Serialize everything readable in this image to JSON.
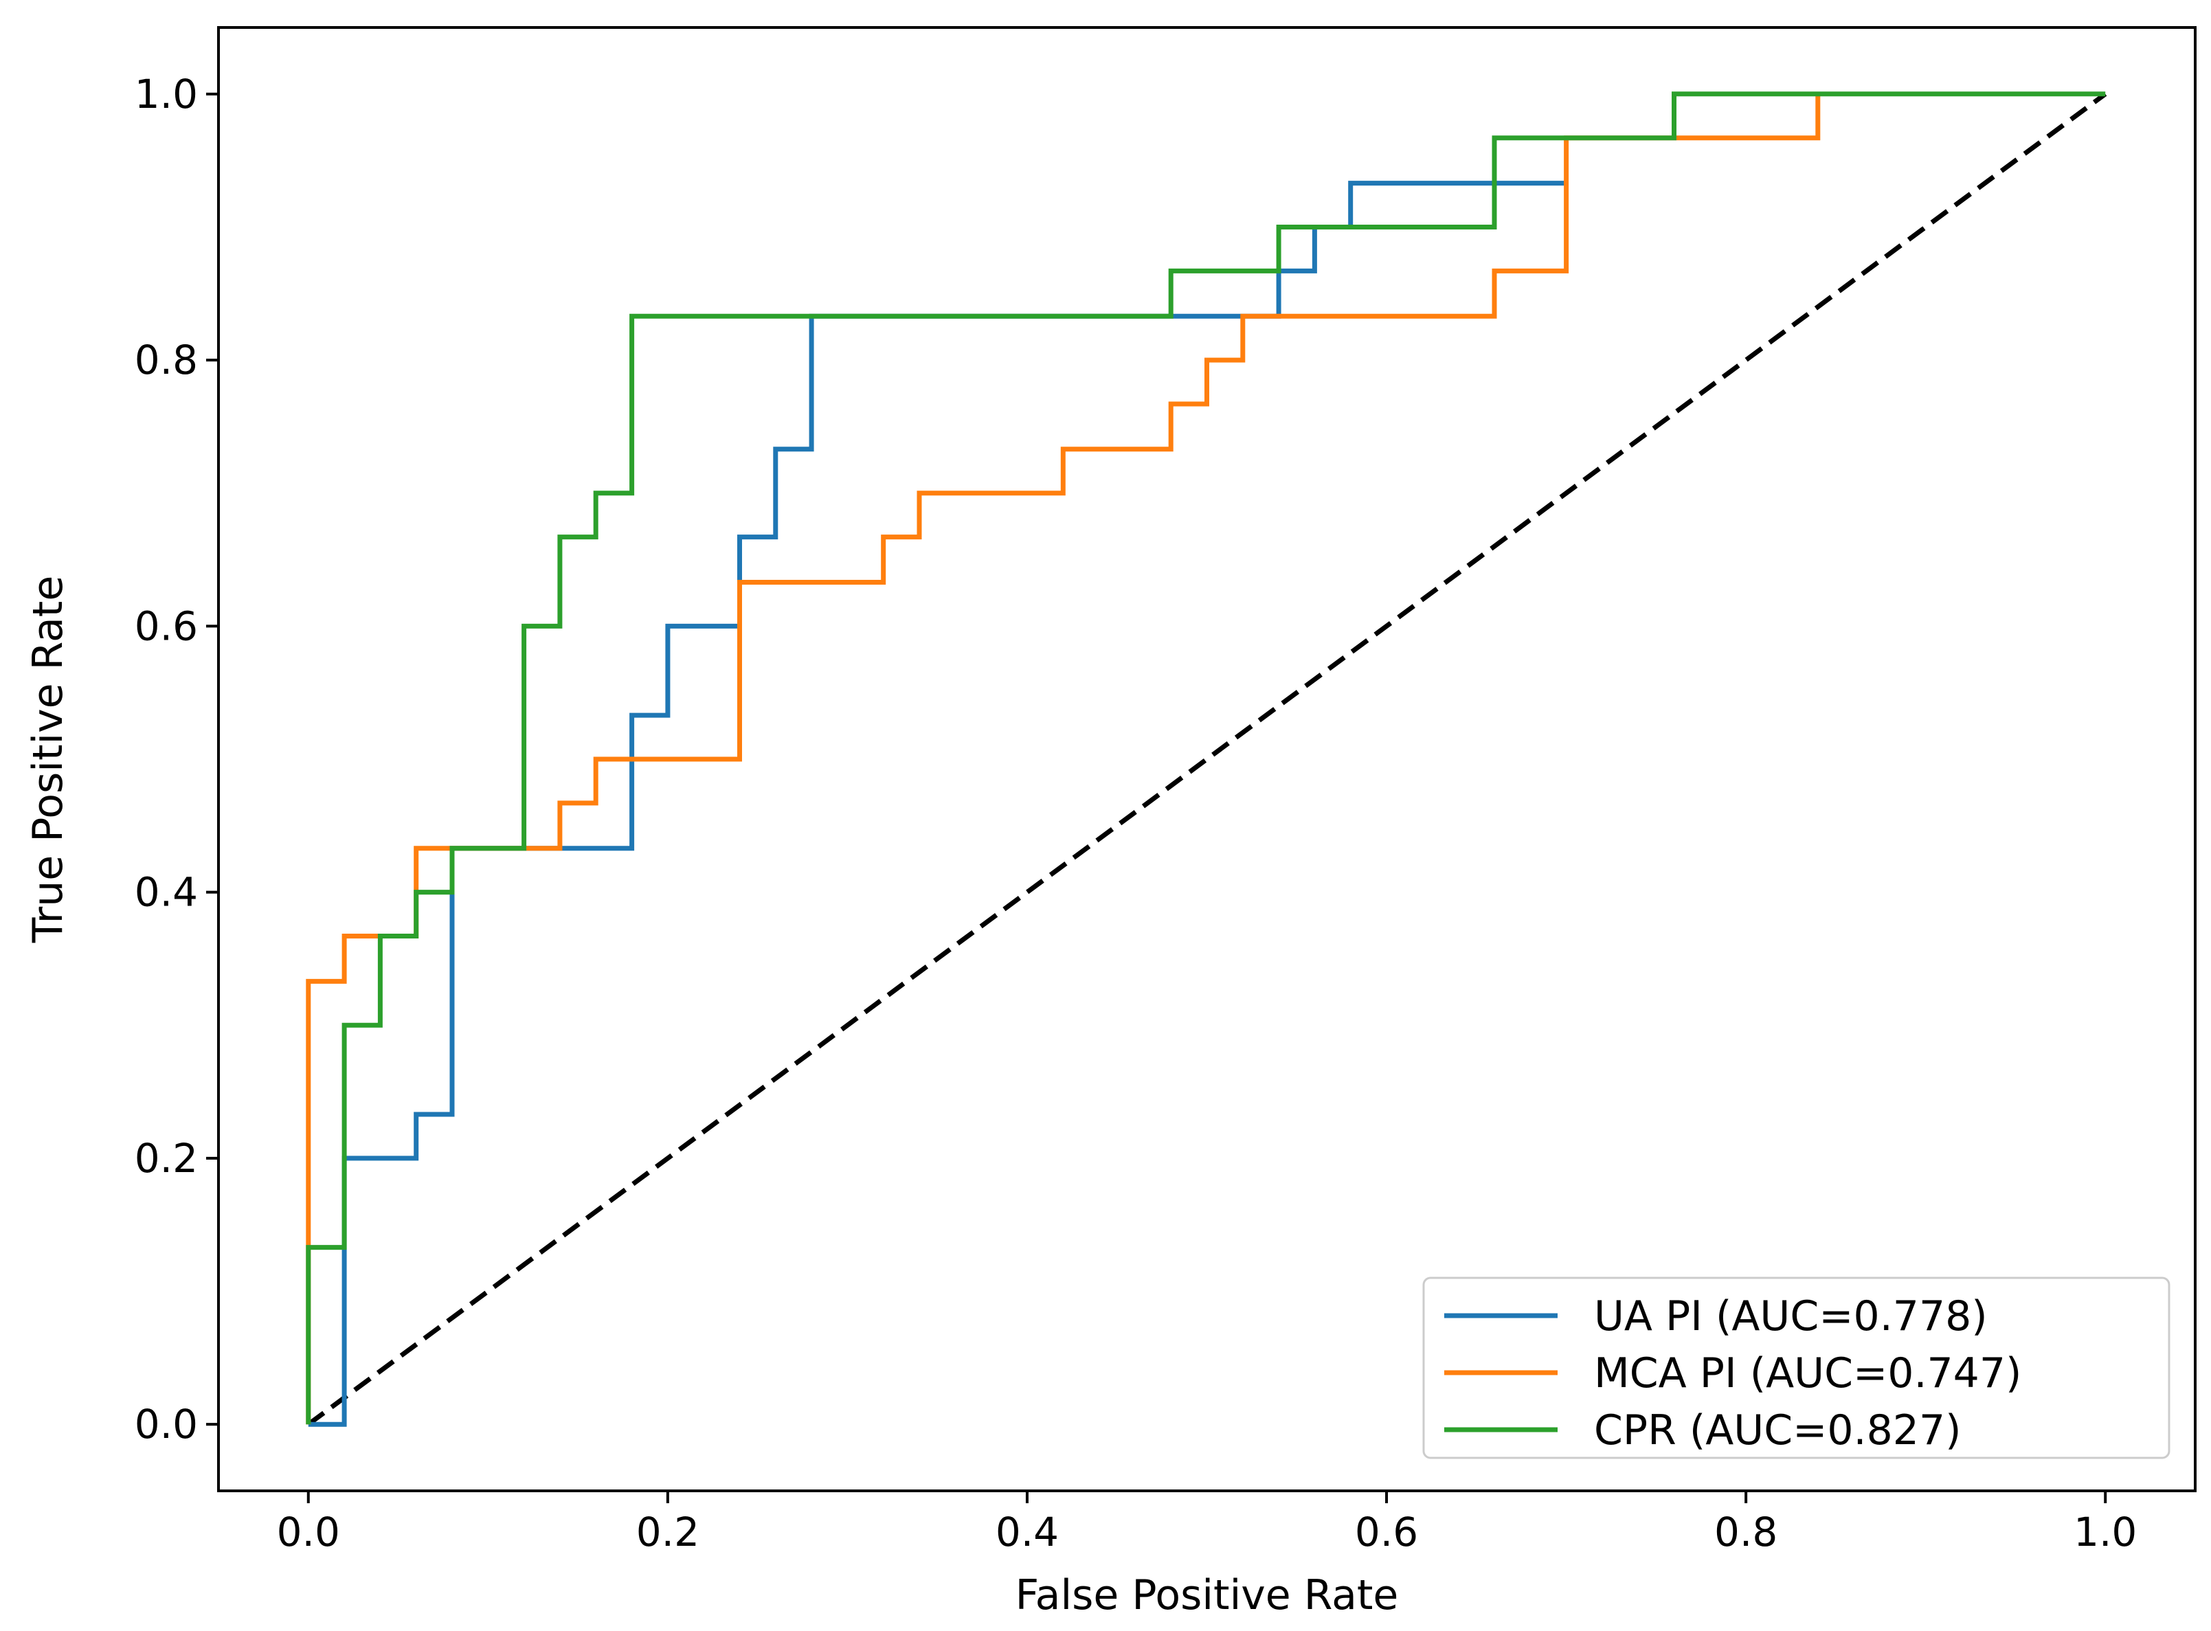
{
  "chart_data": {
    "type": "line",
    "title": "",
    "xlabel": "False Positive Rate",
    "ylabel": "True Positive Rate",
    "xlim": [
      -0.05,
      1.05
    ],
    "ylim": [
      -0.05,
      1.05
    ],
    "xticks": [
      0.0,
      0.2,
      0.4,
      0.6,
      0.8,
      1.0
    ],
    "xtick_labels": [
      "0.0",
      "0.2",
      "0.4",
      "0.6",
      "0.8",
      "1.0"
    ],
    "yticks": [
      0.0,
      0.2,
      0.4,
      0.6,
      0.8,
      1.0
    ],
    "ytick_labels": [
      "0.0",
      "0.2",
      "0.4",
      "0.6",
      "0.8",
      "1.0"
    ],
    "grid": false,
    "legend_position": "lower-right",
    "series": [
      {
        "name": "UA PI (AUC=0.778)",
        "color": "#1f77b4",
        "x": [
          0,
          0.02,
          0.02,
          0.06,
          0.06,
          0.08,
          0.08,
          0.18,
          0.18,
          0.2,
          0.2,
          0.24,
          0.24,
          0.26,
          0.26,
          0.28,
          0.28,
          0.54,
          0.54,
          0.56,
          0.56,
          0.58,
          0.58,
          0.7
        ],
        "y": [
          0,
          0,
          0.2,
          0.2,
          0.233,
          0.233,
          0.433,
          0.433,
          0.533,
          0.533,
          0.6,
          0.6,
          0.667,
          0.667,
          0.733,
          0.733,
          0.833,
          0.833,
          0.867,
          0.867,
          0.9,
          0.9,
          0.933,
          0.933
        ]
      },
      {
        "name": "MCA PI (AUC=0.747)",
        "color": "#ff7f0e",
        "x": [
          0,
          0,
          0.02,
          0.02,
          0.06,
          0.06,
          0.14,
          0.14,
          0.16,
          0.16,
          0.24,
          0.24,
          0.32,
          0.32,
          0.34,
          0.34,
          0.42,
          0.42,
          0.48,
          0.48,
          0.5,
          0.5,
          0.52,
          0.52,
          0.66,
          0.66,
          0.7,
          0.7,
          0.84,
          0.84
        ],
        "y": [
          0,
          0.333,
          0.333,
          0.367,
          0.367,
          0.433,
          0.433,
          0.467,
          0.467,
          0.5,
          0.5,
          0.633,
          0.633,
          0.667,
          0.667,
          0.7,
          0.7,
          0.733,
          0.733,
          0.767,
          0.767,
          0.8,
          0.8,
          0.833,
          0.833,
          0.867,
          0.867,
          0.967,
          0.967,
          1.0
        ]
      },
      {
        "name": "CPR (AUC=0.827)",
        "color": "#2ca02c",
        "x": [
          0,
          0,
          0.02,
          0.02,
          0.04,
          0.04,
          0.06,
          0.06,
          0.08,
          0.08,
          0.12,
          0.12,
          0.14,
          0.14,
          0.16,
          0.16,
          0.18,
          0.18,
          0.48,
          0.48,
          0.54,
          0.54,
          0.66,
          0.66,
          0.76,
          0.76,
          1.0
        ],
        "y": [
          0,
          0.133,
          0.133,
          0.3,
          0.3,
          0.367,
          0.367,
          0.4,
          0.4,
          0.433,
          0.433,
          0.6,
          0.6,
          0.667,
          0.667,
          0.7,
          0.7,
          0.833,
          0.833,
          0.867,
          0.867,
          0.9,
          0.9,
          0.967,
          0.967,
          1.0,
          1.0
        ]
      }
    ],
    "reference_line": {
      "color": "#000000",
      "style": "dashed",
      "x": [
        0,
        1
      ],
      "y": [
        0,
        1
      ]
    },
    "legend": [
      "UA PI (AUC=0.778)",
      "MCA PI (AUC=0.747)",
      "CPR (AUC=0.827)"
    ]
  }
}
